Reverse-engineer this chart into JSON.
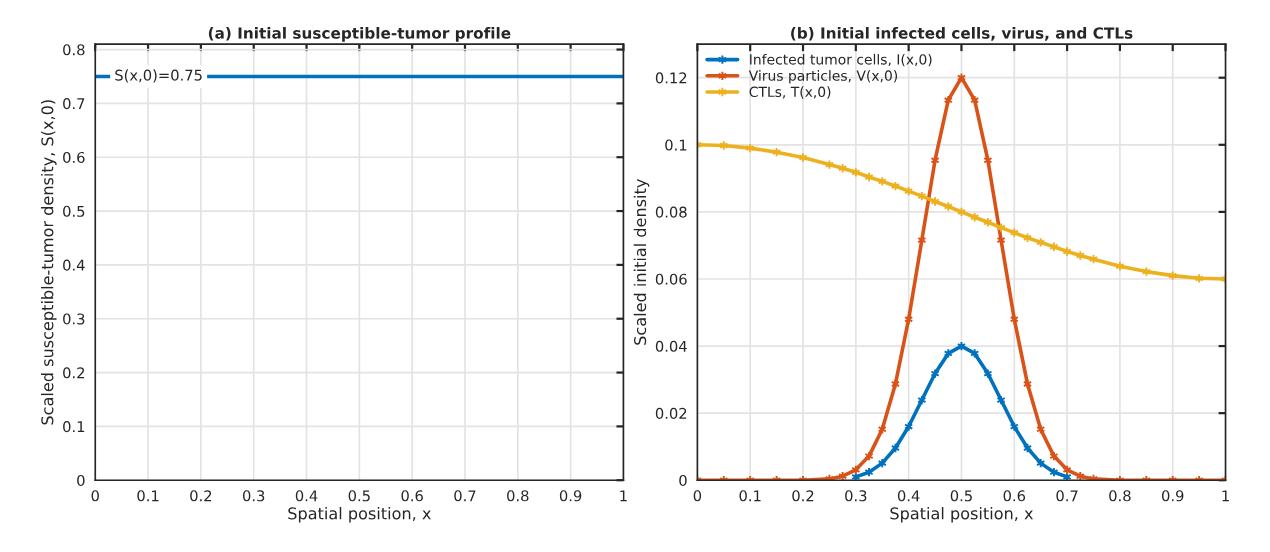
{
  "chart_data": [
    {
      "type": "line",
      "title": "(a) Initial susceptible-tumor profile",
      "xlabel": "Spatial position, x",
      "ylabel": "Scaled susceptible-tumor density, S(x,0)",
      "x": [
        0,
        1
      ],
      "series": [
        {
          "color": "#0072bd",
          "values": [
            0.75,
            0.75
          ]
        }
      ],
      "annotations": [
        {
          "text": "S(x,0)=0.75",
          "x": 0.12,
          "y": 0.75
        }
      ],
      "xlim": [
        0,
        1
      ],
      "xticks": [
        0,
        0.1,
        0.2,
        0.3,
        0.4,
        0.5,
        0.6,
        0.7,
        0.8,
        0.9,
        1
      ],
      "ylim": [
        0,
        0.81
      ],
      "yticks": [
        0,
        0.1,
        0.2,
        0.3,
        0.4,
        0.5,
        0.6,
        0.7,
        0.8
      ],
      "grid": true,
      "marker": "none"
    },
    {
      "type": "line",
      "title": "(b) Initial infected cells, virus, and CTLs",
      "xlabel": "Spatial position, x",
      "ylabel": "Scaled initial density",
      "x": [
        0,
        0.05,
        0.1,
        0.15,
        0.2,
        0.25,
        0.275,
        0.3,
        0.325,
        0.35,
        0.375,
        0.4,
        0.425,
        0.45,
        0.475,
        0.5,
        0.525,
        0.55,
        0.575,
        0.6,
        0.625,
        0.65,
        0.675,
        0.7,
        0.725,
        0.75,
        0.8,
        0.85,
        0.9,
        0.95,
        1
      ],
      "series": [
        {
          "name": "Infected tumor cells, I(x,0)",
          "color": "#0072bd",
          "values": [
            null,
            null,
            null,
            null,
            null,
            null,
            null,
            0.001,
            0.0024,
            0.0051,
            0.0096,
            0.016,
            0.0239,
            0.0318,
            0.0378,
            0.04,
            0.0378,
            0.0318,
            0.0239,
            0.016,
            0.0096,
            0.0051,
            0.0024,
            0.001,
            null,
            null,
            null,
            null,
            null,
            null,
            null
          ]
        },
        {
          "name": "Virus particles, V(x,0)",
          "color": "#d95319",
          "values": [
            0,
            0,
            0,
            0,
            0,
            0.0004,
            0.0012,
            0.0031,
            0.0072,
            0.0152,
            0.0287,
            0.048,
            0.0716,
            0.0954,
            0.1133,
            0.12,
            0.1133,
            0.0954,
            0.0716,
            0.048,
            0.0287,
            0.0152,
            0.0072,
            0.0031,
            0.0012,
            0.0004,
            0,
            0,
            0,
            0,
            0
          ]
        },
        {
          "name": "CTLs, T(x,0)",
          "color": "#edb120",
          "values": [
            0.1,
            0.0998,
            0.099,
            0.0978,
            0.0962,
            0.0941,
            0.093,
            0.0918,
            0.0904,
            0.0891,
            0.0877,
            0.0862,
            0.0847,
            0.0831,
            0.0816,
            0.08,
            0.0784,
            0.0769,
            0.0753,
            0.0738,
            0.0723,
            0.0709,
            0.0696,
            0.0682,
            0.067,
            0.0659,
            0.0638,
            0.0622,
            0.061,
            0.0602,
            0.06
          ]
        }
      ],
      "xlim": [
        0,
        1
      ],
      "xticks": [
        0,
        0.1,
        0.2,
        0.3,
        0.4,
        0.5,
        0.6,
        0.7,
        0.8,
        0.9,
        1
      ],
      "ylim": [
        0,
        0.13
      ],
      "yticks": [
        0,
        0.02,
        0.04,
        0.06,
        0.08,
        0.1,
        0.12
      ],
      "grid": true,
      "marker": "cross",
      "legend": "top left"
    }
  ]
}
